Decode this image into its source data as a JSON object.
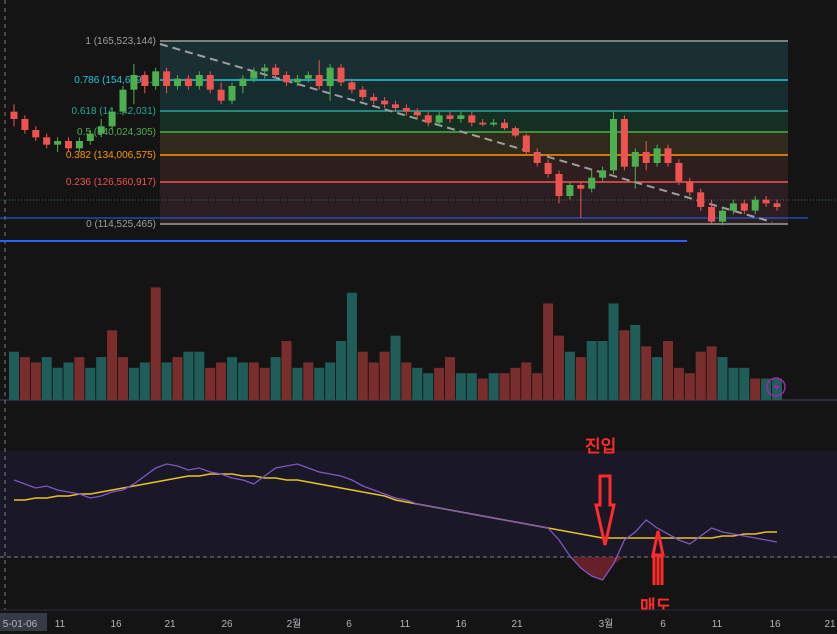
{
  "fib_levels": [
    {
      "ratio_label": "1",
      "price_label": "(165,523,144)",
      "color": "#9e9e9e"
    },
    {
      "ratio_label": "0.786",
      "price_label": "(154,609,...)",
      "color": "#26c6da"
    },
    {
      "ratio_label": "0.618",
      "price_label": "(14...42,031)",
      "color": "#26a69a"
    },
    {
      "ratio_label": "0.5",
      "price_label": "(140,024,305)",
      "color": "#4caf50"
    },
    {
      "ratio_label": "0.382",
      "price_label": "(134,006,575)",
      "color": "#ff9800"
    },
    {
      "ratio_label": "0.236",
      "price_label": "(126,560,917)",
      "color": "#ef5350"
    },
    {
      "ratio_label": "0",
      "price_label": "(114,525,465)",
      "color": "#9e9e9e"
    }
  ],
  "annotations": {
    "entry_label": "진입",
    "exit_label": "매도"
  },
  "x_axis": {
    "labels": [
      "5-01-06",
      "11",
      "16",
      "21",
      "26",
      "2월",
      "6",
      "11",
      "16",
      "21",
      "3월",
      "6",
      "11",
      "16",
      "21"
    ]
  },
  "indicator_icon": "lightning-icon",
  "colors": {
    "up": "#4caf50",
    "down": "#ef5350",
    "signal_line": "#e6c229",
    "oscillator_line": "#7e57c2",
    "annotation": "#ff2a2a"
  },
  "chart_data": {
    "type": "candlestick",
    "price_candles": {
      "note_units": "price KRW",
      "ohlc": [
        [
          145,
          147,
          141,
          143
        ],
        [
          143,
          144,
          139,
          140
        ],
        [
          140,
          141,
          137,
          138
        ],
        [
          138,
          139,
          135,
          136
        ],
        [
          136,
          138,
          134,
          137
        ],
        [
          137,
          138,
          134,
          135
        ],
        [
          135,
          138,
          134,
          137
        ],
        [
          137,
          140,
          136,
          139
        ],
        [
          139,
          143,
          138,
          141
        ],
        [
          141,
          146,
          140,
          145
        ],
        [
          145,
          152,
          144,
          151
        ],
        [
          151,
          158,
          147,
          155
        ],
        [
          155,
          156,
          150,
          152
        ],
        [
          152,
          157,
          151,
          156
        ],
        [
          156,
          157,
          150,
          152
        ],
        [
          152,
          155,
          151,
          154
        ],
        [
          154,
          155,
          151,
          152
        ],
        [
          152,
          156,
          151,
          155
        ],
        [
          155,
          156,
          150,
          151
        ],
        [
          151,
          153,
          147,
          148
        ],
        [
          148,
          153,
          147,
          152
        ],
        [
          152,
          155,
          150,
          154
        ],
        [
          154,
          157,
          153,
          156
        ],
        [
          156,
          158,
          154,
          157
        ],
        [
          157,
          158,
          154,
          155
        ],
        [
          155,
          156,
          152,
          153
        ],
        [
          153,
          155,
          152,
          154
        ],
        [
          154,
          156,
          153,
          155
        ],
        [
          155,
          159,
          151,
          152
        ],
        [
          152,
          158,
          148,
          157
        ],
        [
          157,
          158,
          152,
          153
        ],
        [
          153,
          154,
          150,
          151
        ],
        [
          151,
          152,
          148,
          149
        ],
        [
          149,
          150,
          147,
          148
        ],
        [
          148,
          149,
          146,
          147
        ],
        [
          147,
          148,
          145,
          146
        ],
        [
          146,
          147,
          144,
          145
        ],
        [
          145,
          146,
          143,
          144
        ],
        [
          144,
          145,
          141,
          142
        ],
        [
          142,
          145,
          141,
          144
        ],
        [
          144,
          145,
          142,
          143
        ],
        [
          143,
          145,
          142,
          144
        ],
        [
          144,
          145,
          141,
          142
        ],
        [
          142,
          143,
          141,
          141.5
        ],
        [
          141.5,
          143,
          141,
          142
        ],
        [
          142,
          143,
          140,
          140.5
        ],
        [
          140.5,
          141,
          138,
          138.5
        ],
        [
          138.5,
          139,
          133,
          134
        ],
        [
          134,
          135,
          130,
          131
        ],
        [
          131,
          132,
          127,
          128
        ],
        [
          128,
          129,
          120,
          122
        ],
        [
          122,
          126,
          121,
          125
        ],
        [
          125,
          126,
          116,
          124
        ],
        [
          124,
          129,
          123,
          127
        ],
        [
          127,
          130,
          126,
          129
        ],
        [
          129,
          145,
          128,
          143
        ],
        [
          143,
          144,
          129,
          130
        ],
        [
          130,
          135,
          124,
          134
        ],
        [
          134,
          137,
          129,
          131
        ],
        [
          131,
          136,
          130,
          135
        ],
        [
          135,
          136,
          130,
          131
        ],
        [
          131,
          132,
          125,
          126
        ],
        [
          126,
          127,
          122,
          123
        ],
        [
          123,
          124,
          118,
          119
        ],
        [
          119,
          121,
          114.5,
          115
        ],
        [
          115,
          119,
          114,
          118
        ],
        [
          118,
          121,
          117,
          120
        ],
        [
          120,
          121,
          117,
          118
        ],
        [
          118,
          122,
          117,
          121
        ],
        [
          121,
          122,
          119,
          120
        ],
        [
          120,
          121,
          118,
          119
        ]
      ]
    },
    "volume": {
      "values": [
        9,
        8,
        7,
        8,
        6,
        7,
        8,
        6,
        8,
        13,
        8,
        6,
        7,
        21,
        7,
        8,
        9,
        9,
        6,
        7,
        8,
        7,
        7,
        6,
        8,
        11,
        6,
        7,
        6,
        7,
        11,
        20,
        9,
        7,
        9,
        12,
        7,
        6,
        5,
        6,
        8,
        5,
        5,
        4,
        5,
        5,
        6,
        7,
        5,
        18,
        12,
        9,
        8,
        11,
        11,
        18,
        13,
        14,
        10,
        8,
        11,
        6,
        5,
        9,
        10,
        8,
        6,
        6,
        4,
        4,
        4
      ],
      "up": [
        true,
        false,
        false,
        true,
        true,
        true,
        false,
        true,
        true,
        false,
        false,
        true,
        true,
        false,
        true,
        false,
        true,
        true,
        false,
        false,
        true,
        true,
        false,
        false,
        true,
        false,
        true,
        false,
        true,
        true,
        true,
        true,
        false,
        false,
        false,
        true,
        false,
        true,
        true,
        false,
        false,
        true,
        true,
        false,
        true,
        false,
        false,
        false,
        false,
        false,
        false,
        true,
        false,
        true,
        true,
        true,
        false,
        true,
        false,
        true,
        false,
        false,
        false,
        false,
        false,
        true,
        true,
        true,
        false,
        true,
        true
      ]
    },
    "oscillator": {
      "main": [
        60,
        58,
        56,
        57,
        55,
        54,
        53,
        51,
        52,
        54,
        55,
        58,
        62,
        66,
        68,
        67,
        65,
        66,
        64,
        63,
        61,
        60,
        58,
        62,
        66,
        67,
        68,
        66,
        64,
        63,
        62,
        60,
        57,
        55,
        53,
        51,
        50,
        48,
        47,
        46,
        45,
        44,
        43,
        42,
        41,
        40,
        39,
        38,
        37,
        36,
        30,
        22,
        16,
        12,
        10,
        18,
        30,
        34,
        40,
        36,
        33,
        30,
        28,
        32,
        36,
        34,
        33,
        32,
        31,
        30,
        29
      ],
      "signal": [
        50,
        50,
        51,
        51,
        52,
        52,
        53,
        53,
        54,
        55,
        56,
        57,
        58,
        59,
        60,
        61,
        62,
        62,
        63,
        63,
        63,
        62,
        62,
        61,
        61,
        60,
        60,
        59,
        58,
        57,
        56,
        55,
        54,
        53,
        52,
        50,
        49,
        48,
        47,
        46,
        45,
        44,
        43,
        42,
        41,
        40,
        39,
        38,
        37,
        36,
        35,
        34,
        33,
        32,
        31,
        31,
        31,
        31,
        31,
        31,
        31,
        31,
        31,
        31,
        31,
        32,
        32,
        33,
        33,
        34,
        34
      ]
    }
  }
}
